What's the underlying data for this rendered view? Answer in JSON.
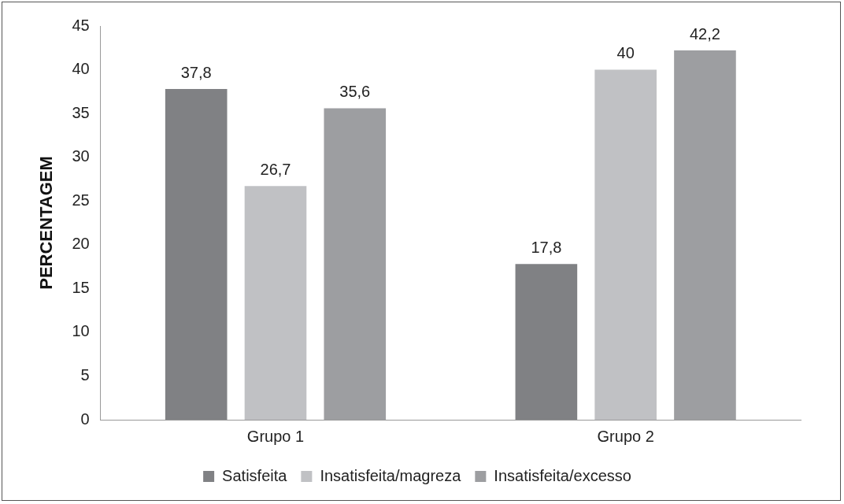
{
  "chart_data": {
    "type": "bar",
    "ylabel": "PERCENTAGEM",
    "categories": [
      "Grupo 1",
      "Grupo 2"
    ],
    "series": [
      {
        "name": "Satisfeita",
        "color": "#808184",
        "values": [
          37.8,
          17.8
        ],
        "value_labels": [
          "37,8",
          "17,8"
        ]
      },
      {
        "name": "Insatisfeita/magreza",
        "color": "#c0c1c4",
        "values": [
          26.7,
          40
        ],
        "value_labels": [
          "26,7",
          "40"
        ]
      },
      {
        "name": "Insatisfeita/excesso",
        "color": "#9d9ea1",
        "values": [
          35.6,
          42.2
        ],
        "value_labels": [
          "35,6",
          "42,2"
        ]
      }
    ],
    "ylim": [
      0,
      45
    ],
    "yticks": [
      0,
      5,
      10,
      15,
      20,
      25,
      30,
      35,
      40,
      45
    ],
    "grid": false,
    "legend": "bottom"
  }
}
